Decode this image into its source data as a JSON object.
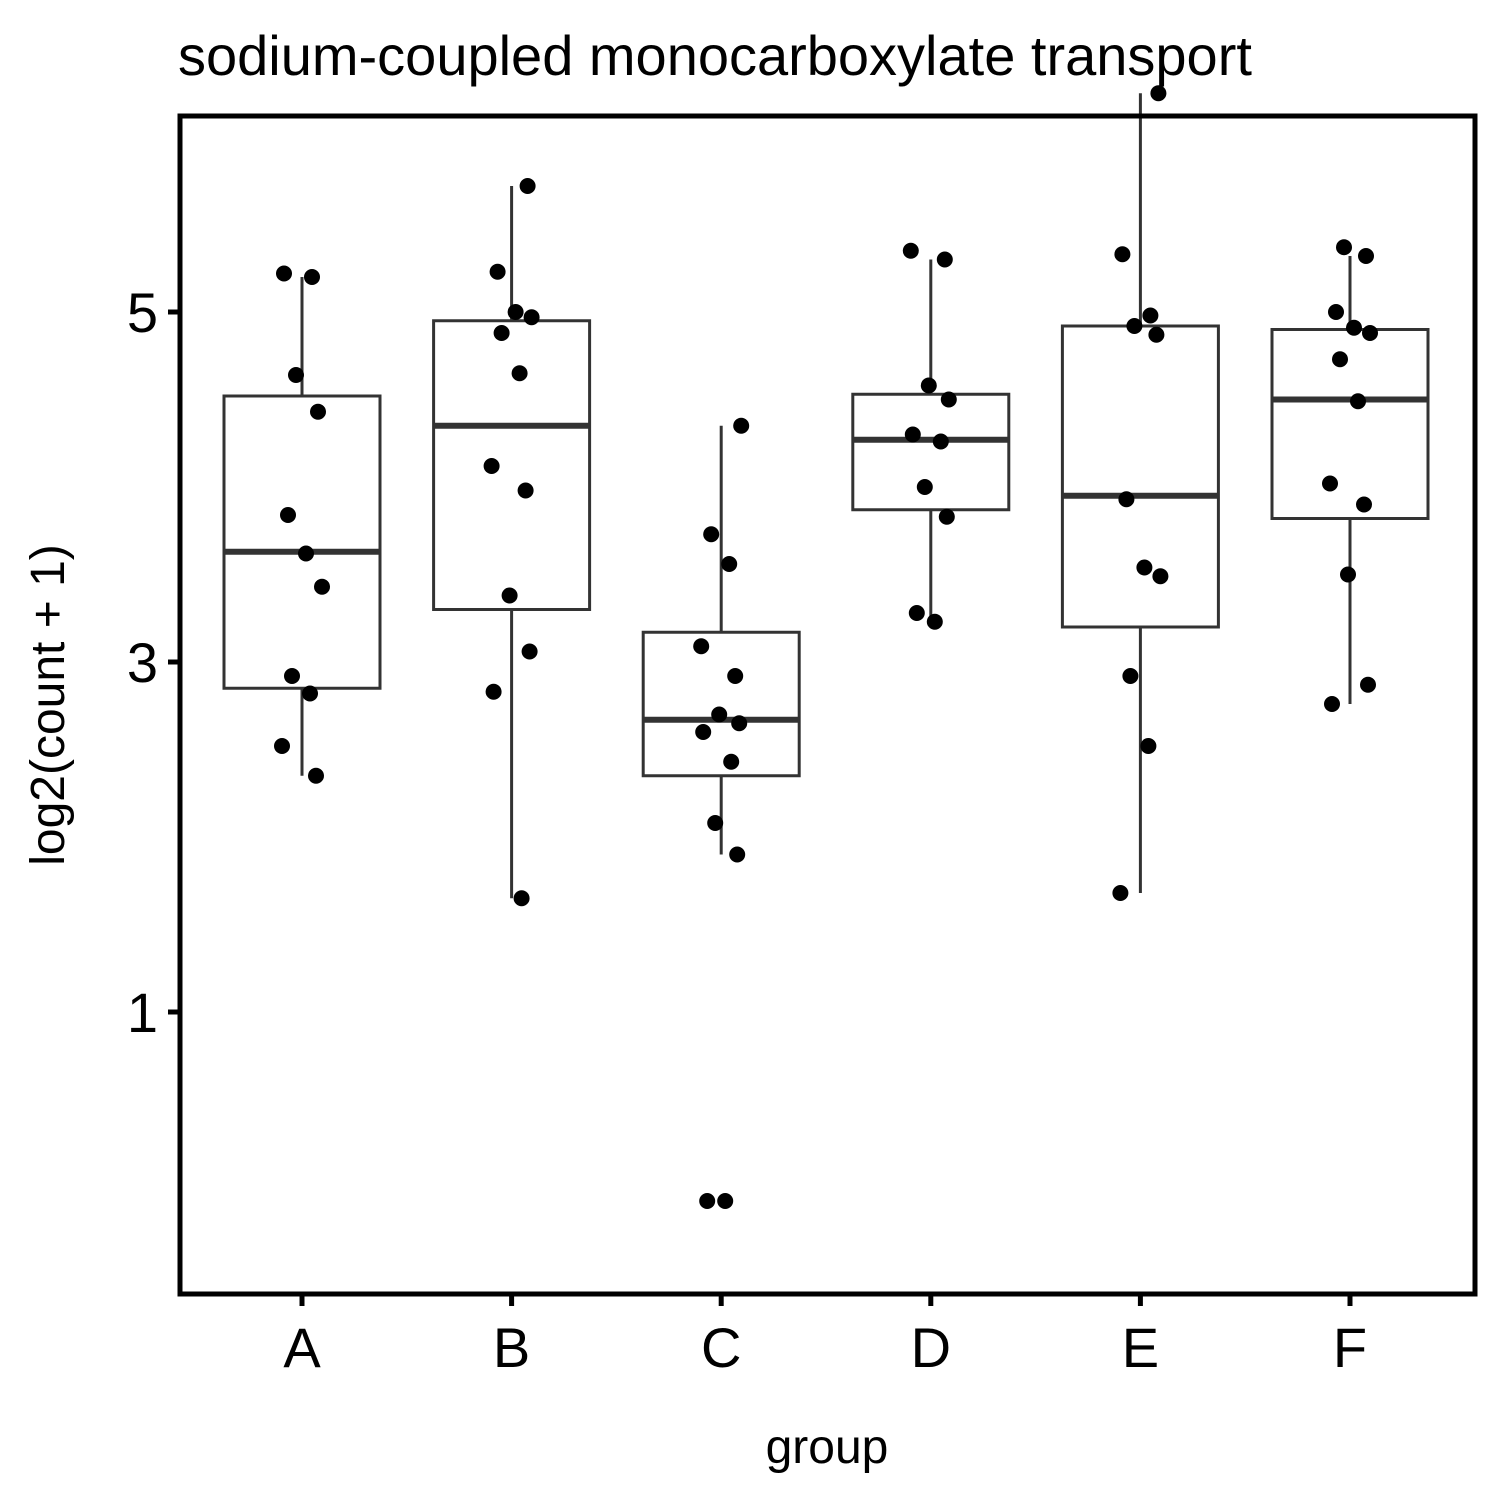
{
  "chart_data": {
    "type": "box",
    "title": "sodium-coupled monocarboxylate transport",
    "xlabel": "group",
    "ylabel": "log2(count + 1)",
    "categories": [
      "A",
      "B",
      "C",
      "D",
      "E",
      "F"
    ],
    "y_ticks": [
      1,
      3,
      5
    ],
    "y_tick_labels": [
      "1",
      "3",
      "5"
    ],
    "ylim": [
      -0.2,
      6.75
    ],
    "grid": false,
    "colors": {
      "box": "#333333",
      "point": "#000000"
    },
    "boxes": [
      {
        "group": "A",
        "min": 2.35,
        "q1": 2.85,
        "median": 3.63,
        "q3": 4.52,
        "max": 5.2
      },
      {
        "group": "B",
        "min": 1.65,
        "q1": 3.3,
        "median": 4.35,
        "q3": 4.95,
        "max": 5.72
      },
      {
        "group": "C",
        "min": 1.9,
        "q1": 2.35,
        "median": 2.67,
        "q3": 3.17,
        "max": 4.35
      },
      {
        "group": "D",
        "min": 3.25,
        "q1": 3.87,
        "median": 4.27,
        "q3": 4.53,
        "max": 5.3
      },
      {
        "group": "E",
        "min": 1.68,
        "q1": 3.2,
        "median": 3.95,
        "q3": 4.92,
        "max": 6.25
      },
      {
        "group": "F",
        "min": 2.76,
        "q1": 3.82,
        "median": 4.5,
        "q3": 4.9,
        "max": 5.32
      }
    ],
    "points": [
      {
        "group": "A",
        "y": [
          5.22,
          5.2,
          4.64,
          4.43,
          3.84,
          3.62,
          3.43,
          2.92,
          2.82,
          2.52,
          2.35
        ]
      },
      {
        "group": "B",
        "y": [
          5.72,
          5.23,
          5.0,
          4.97,
          4.88,
          4.65,
          4.12,
          3.98,
          3.38,
          3.06,
          2.83,
          1.65
        ]
      },
      {
        "group": "C",
        "y": [
          4.35,
          3.73,
          3.56,
          3.09,
          2.92,
          2.7,
          2.65,
          2.6,
          2.43,
          2.08,
          1.9,
          -0.08,
          -0.08
        ]
      },
      {
        "group": "D",
        "y": [
          5.35,
          5.3,
          4.58,
          4.5,
          4.3,
          4.26,
          4.0,
          3.83,
          3.28,
          3.23
        ]
      },
      {
        "group": "E",
        "y": [
          6.25,
          5.33,
          4.98,
          4.92,
          4.87,
          3.93,
          3.54,
          3.49,
          2.92,
          2.52,
          1.68
        ]
      },
      {
        "group": "F",
        "y": [
          5.37,
          5.32,
          5.0,
          4.91,
          4.88,
          4.73,
          4.49,
          4.02,
          3.9,
          3.5,
          2.87,
          2.76
        ]
      }
    ]
  }
}
